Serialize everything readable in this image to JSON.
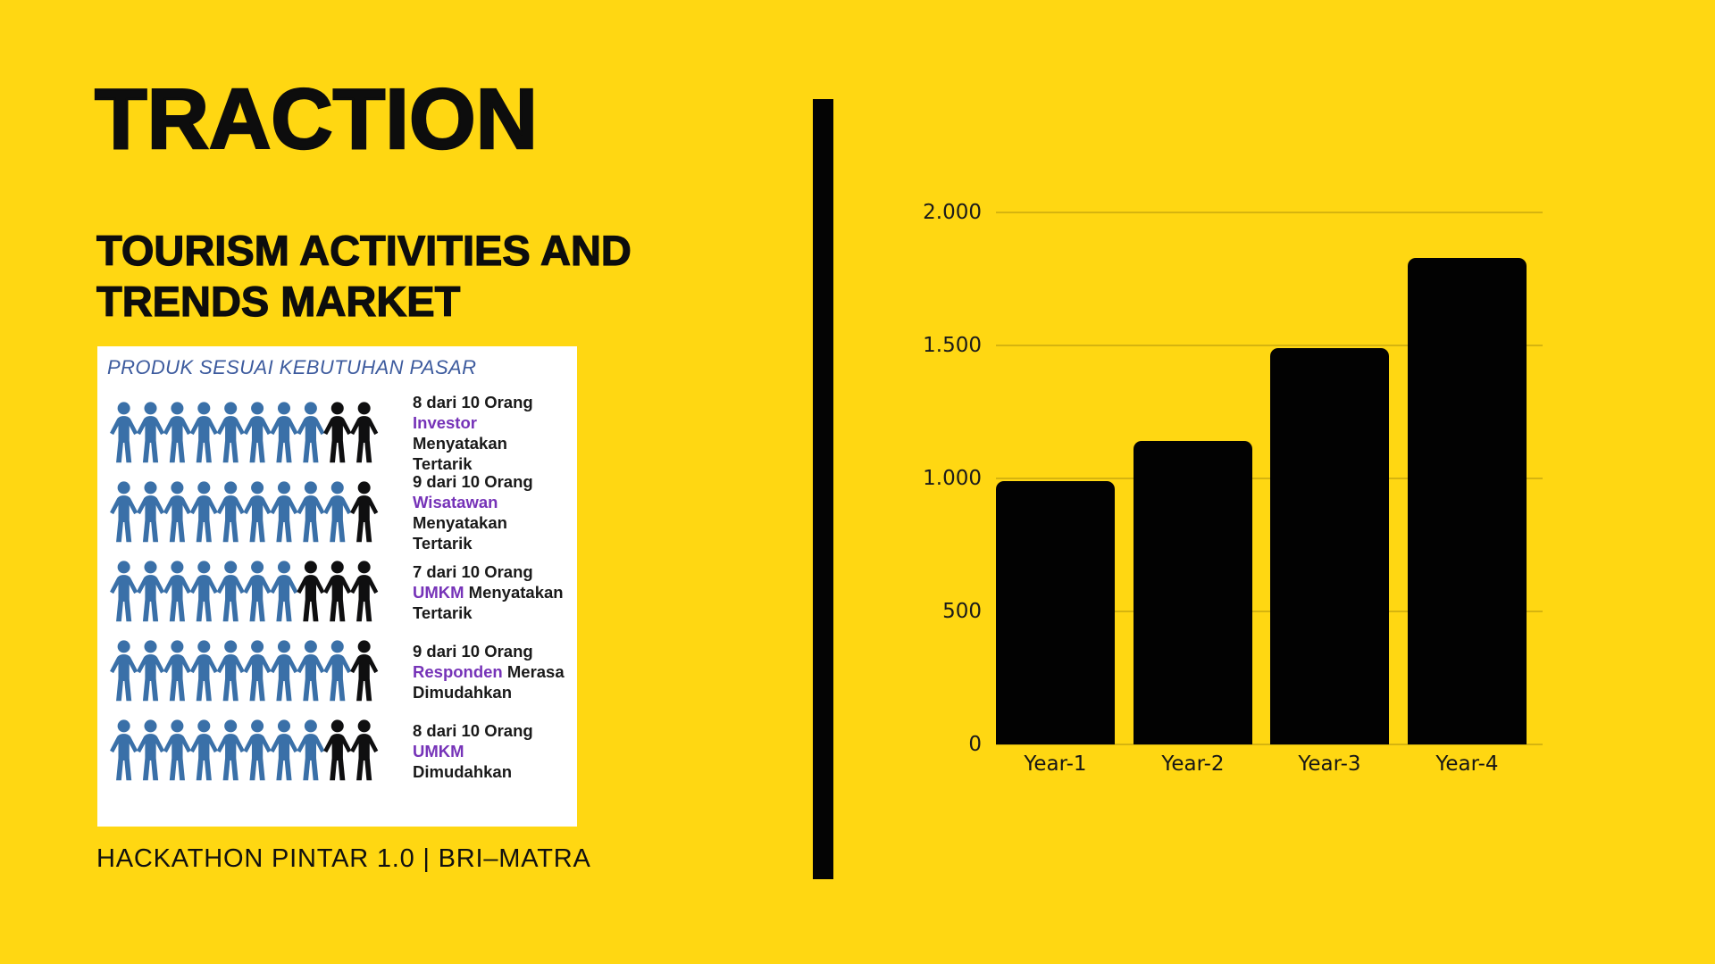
{
  "slide": {
    "title": "TRACTION",
    "subtitle_lines": [
      "TOURISM ACTIVITIES AND",
      "TRENDS MARKET"
    ],
    "footer": "HACKATHON PINTAR 1.0 | BRI–MATRA",
    "colors": {
      "background": "#ffd712",
      "text": "#0d0d0d",
      "divider": "#040404"
    }
  },
  "infographic": {
    "title": "PRODUK SESUAI KEBUTUHAN PASAR",
    "colors": {
      "panel_background": "#ffffff",
      "title_blue": "#3d5b9e",
      "person_blue": "#3a70a8",
      "person_black": "#0f0f10",
      "keyword_purple": "#7633b8"
    },
    "rows": [
      {
        "blue_count": 8,
        "black_count": 2,
        "line1": "8 dari 10 Orang",
        "keyword": "Investor",
        "rest": " Menyatakan\nTertarik"
      },
      {
        "blue_count": 9,
        "black_count": 1,
        "line1": "9 dari 10 Orang",
        "keyword": "Wisatawan",
        "rest": "\nMenyatakan Tertarik"
      },
      {
        "blue_count": 7,
        "black_count": 3,
        "line1": "7 dari 10 Orang",
        "keyword": "UMKM",
        "rest": " Menyatakan\nTertarik"
      },
      {
        "blue_count": 9,
        "black_count": 1,
        "line1": "9 dari 10 Orang",
        "keyword": "Responden",
        "rest": " Merasa\nDimudahkan"
      },
      {
        "blue_count": 8,
        "black_count": 2,
        "line1": "8 dari 10 Orang",
        "keyword": "UMKM",
        "rest": "\nDimudahkan"
      }
    ]
  },
  "chart_data": {
    "type": "bar",
    "categories": [
      "Year-1",
      "Year-2",
      "Year-3",
      "Year-4"
    ],
    "values": [
      990,
      1140,
      1490,
      1830
    ],
    "title": "",
    "xlabel": "",
    "ylabel": "",
    "ylim": [
      0,
      2000
    ],
    "yticks": [
      {
        "value": 0,
        "label": "0"
      },
      {
        "value": 500,
        "label": "500"
      },
      {
        "value": 1000,
        "label": "1.000"
      },
      {
        "value": 1500,
        "label": "1.500"
      },
      {
        "value": 2000,
        "label": "2.000"
      }
    ],
    "grid": true,
    "legend": false,
    "bar_color": "#020202",
    "bar_corner_radius": 9
  }
}
